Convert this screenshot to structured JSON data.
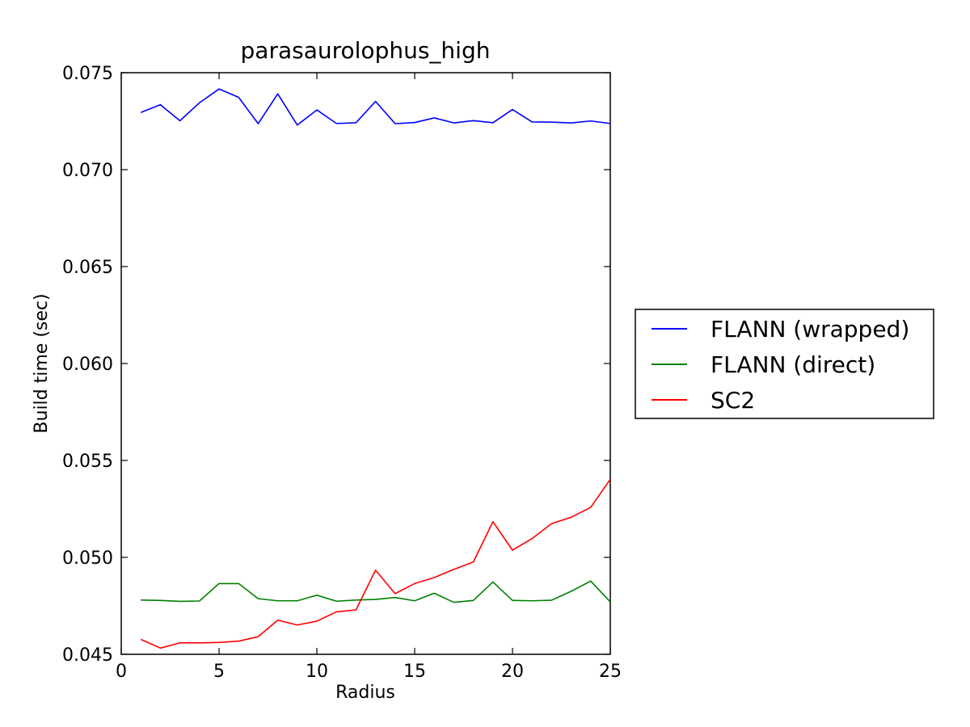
{
  "chart_data": {
    "type": "line",
    "title": "parasaurolophus_high",
    "xlabel": "Radius",
    "ylabel": "Build time (sec)",
    "xlim": [
      0,
      25
    ],
    "ylim": [
      0.045,
      0.075
    ],
    "xticks": [
      0,
      5,
      10,
      15,
      20,
      25
    ],
    "xtick_labels": [
      "0",
      "5",
      "10",
      "15",
      "20",
      "25"
    ],
    "yticks": [
      0.045,
      0.05,
      0.055,
      0.06,
      0.065,
      0.07,
      0.075
    ],
    "ytick_labels": [
      "0.045",
      "0.050",
      "0.055",
      "0.060",
      "0.065",
      "0.070",
      "0.075"
    ],
    "grid": false,
    "legend_position": "outside-right",
    "x": [
      1,
      2,
      3,
      4,
      5,
      6,
      7,
      8,
      9,
      10,
      11,
      12,
      13,
      14,
      15,
      16,
      17,
      18,
      19,
      20,
      21,
      22,
      23,
      24,
      25
    ],
    "series": [
      {
        "name": "FLANN (wrapped)",
        "color": "#0000ff",
        "values": [
          0.07295,
          0.07335,
          0.07252,
          0.07345,
          0.07416,
          0.07373,
          0.07237,
          0.07391,
          0.0723,
          0.07308,
          0.07238,
          0.07242,
          0.07352,
          0.07237,
          0.07243,
          0.07267,
          0.07241,
          0.07253,
          0.07242,
          0.0731,
          0.07246,
          0.07245,
          0.07241,
          0.07251,
          0.07238
        ]
      },
      {
        "name": "FLANN (direct)",
        "color": "#008000",
        "values": [
          0.0478,
          0.04778,
          0.04773,
          0.04775,
          0.04865,
          0.04865,
          0.04787,
          0.04776,
          0.04776,
          0.04805,
          0.04774,
          0.0478,
          0.04783,
          0.04793,
          0.04776,
          0.04815,
          0.04768,
          0.04778,
          0.04873,
          0.04778,
          0.04776,
          0.04779,
          0.04825,
          0.04878,
          0.0477
        ]
      },
      {
        "name": "SC2",
        "color": "#ff0000",
        "values": [
          0.04577,
          0.04532,
          0.04559,
          0.04559,
          0.04561,
          0.04568,
          0.04591,
          0.04676,
          0.04651,
          0.04671,
          0.04719,
          0.04729,
          0.04934,
          0.04813,
          0.04865,
          0.04896,
          0.04938,
          0.04976,
          0.05184,
          0.05037,
          0.05097,
          0.05174,
          0.05207,
          0.05258,
          0.05403
        ]
      }
    ]
  }
}
